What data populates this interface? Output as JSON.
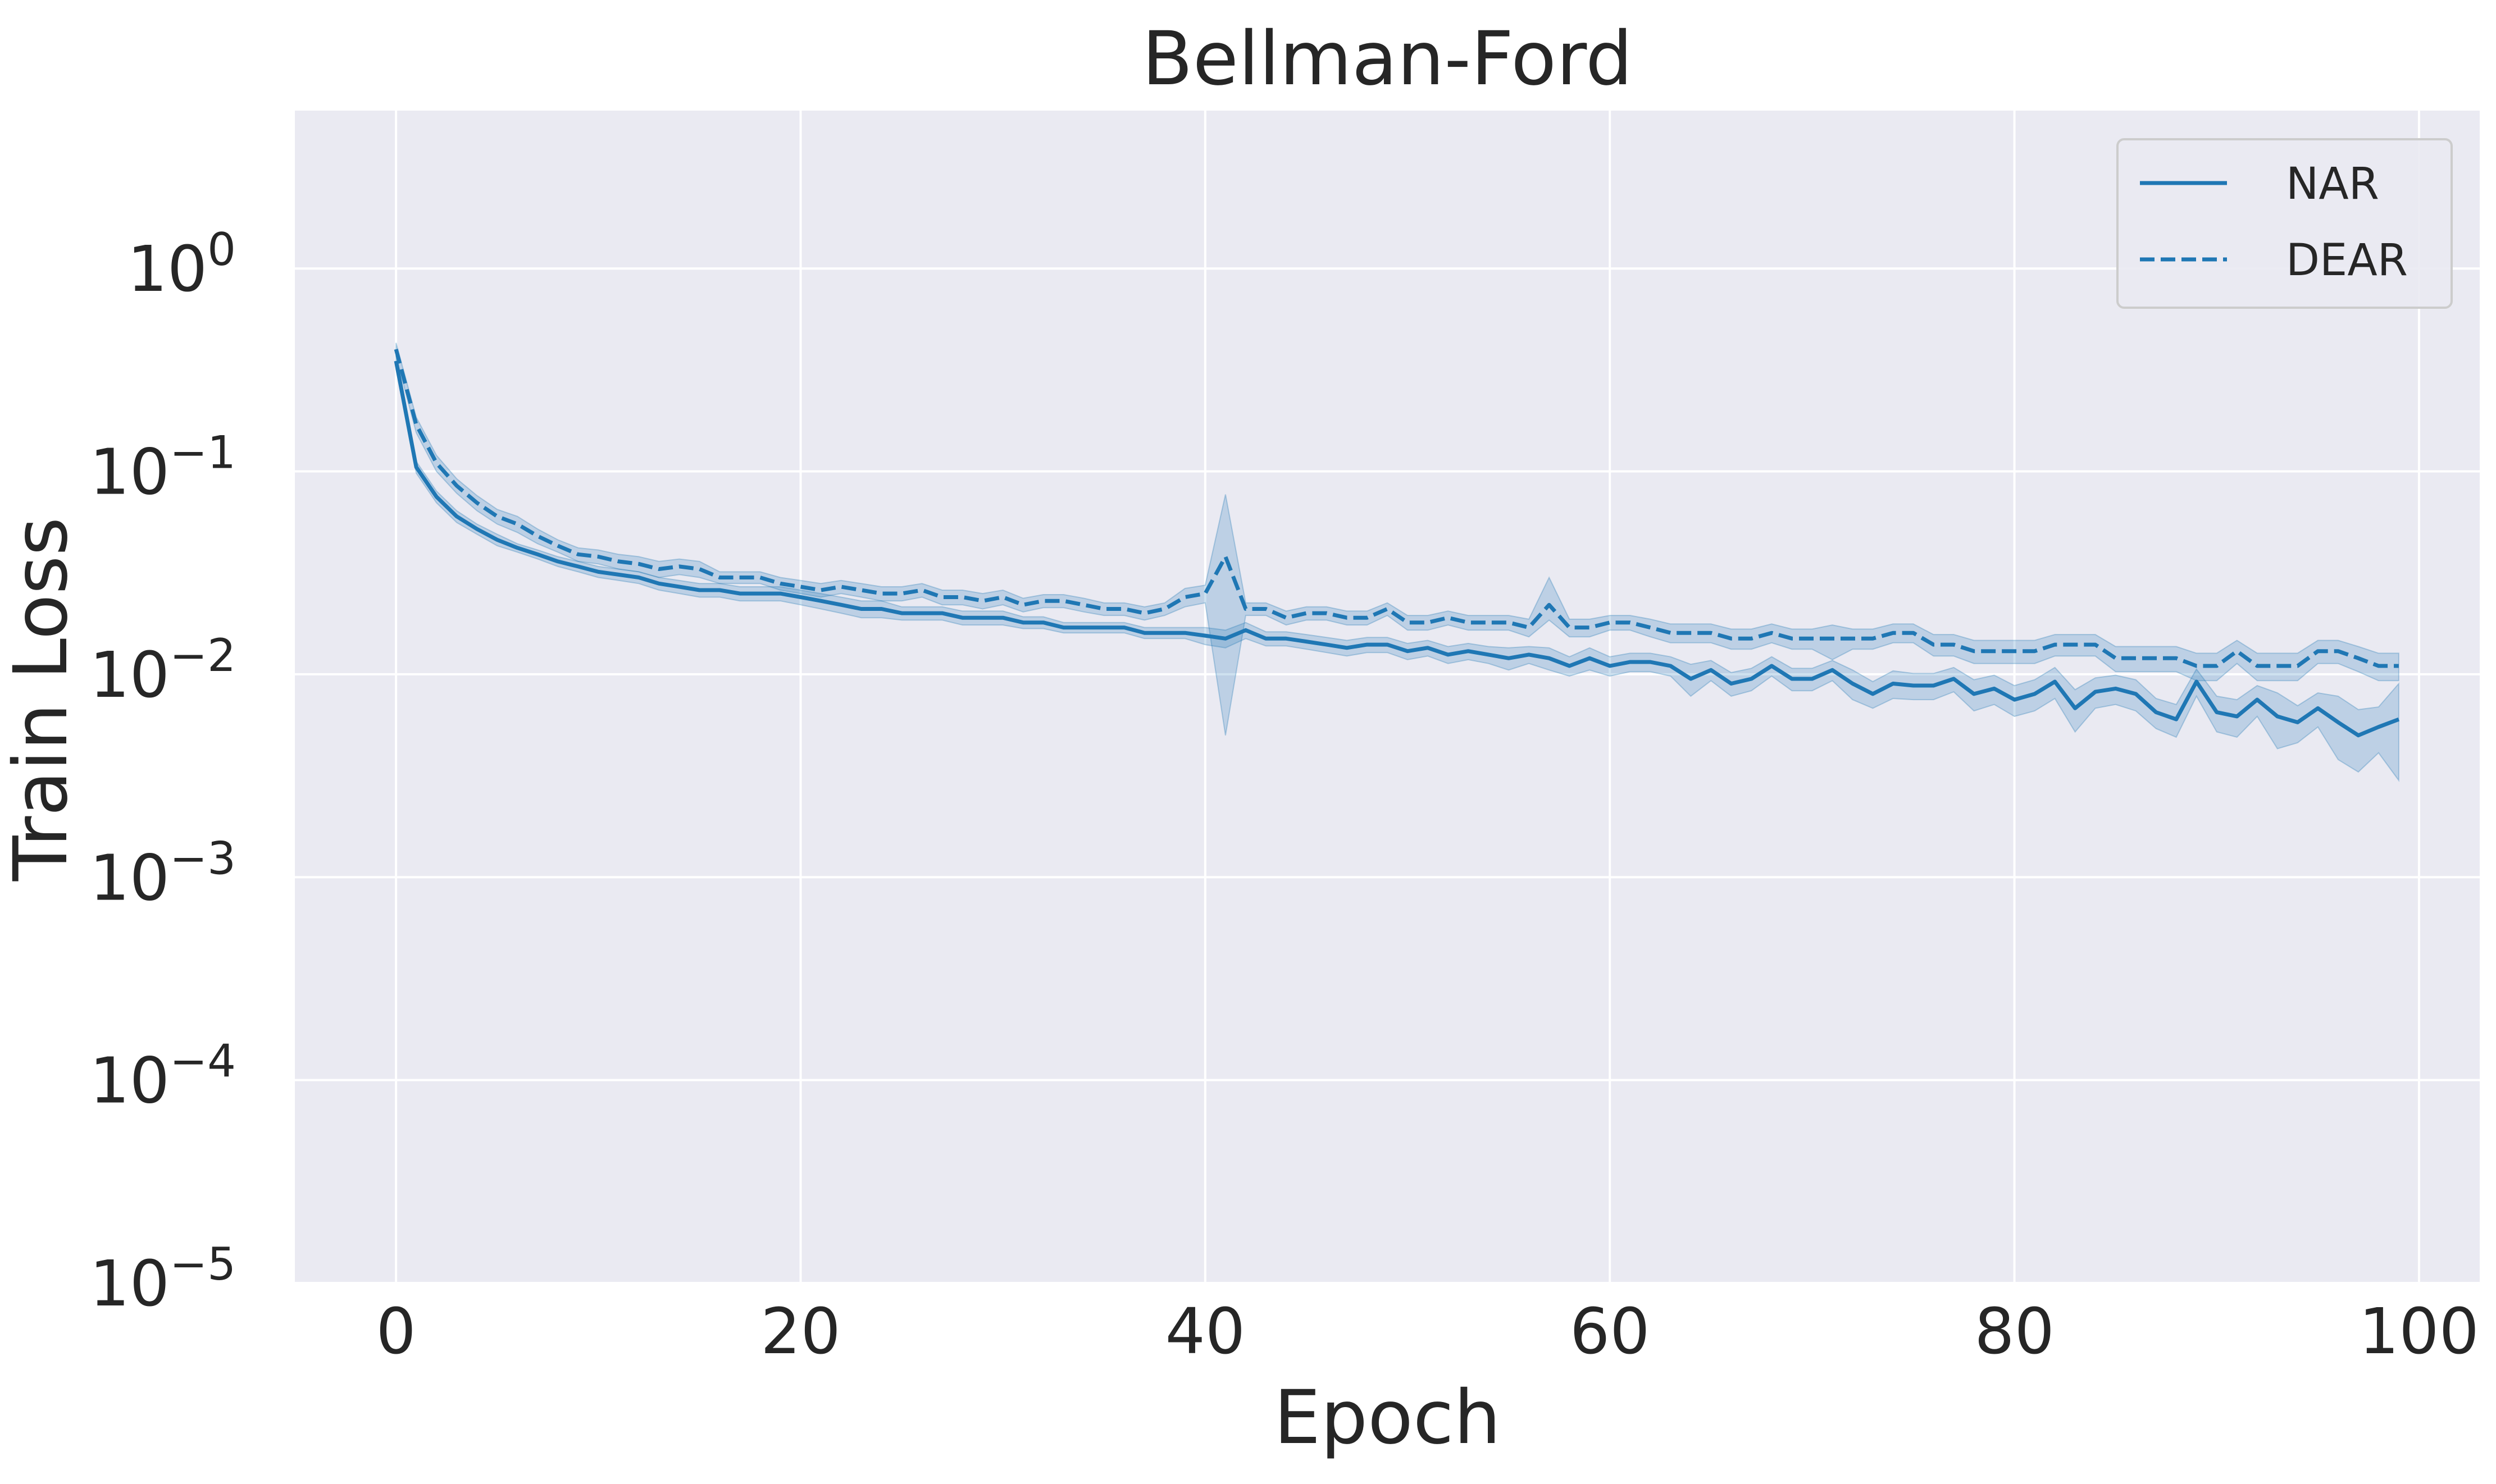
{
  "chart_data": {
    "type": "line",
    "title": "Bellman-Ford",
    "xlabel": "Epoch",
    "ylabel": "Train Loss",
    "xlim": [
      -5,
      103
    ],
    "ylim": [
      1e-05,
      6
    ],
    "yscale": "log",
    "grid": true,
    "background": "#eaeaf2",
    "legend_position": "top-right",
    "x_ticks": [
      {
        "value": 0,
        "label": "0"
      },
      {
        "value": 20,
        "label": "20"
      },
      {
        "value": 40,
        "label": "40"
      },
      {
        "value": 60,
        "label": "60"
      },
      {
        "value": 80,
        "label": "80"
      },
      {
        "value": 100,
        "label": "100"
      }
    ],
    "y_ticks": [
      {
        "value": 1,
        "base": "10",
        "exp": "0"
      },
      {
        "value": 0.1,
        "base": "10",
        "exp": "−1"
      },
      {
        "value": 0.01,
        "base": "10",
        "exp": "−2"
      },
      {
        "value": 0.001,
        "base": "10",
        "exp": "−3"
      },
      {
        "value": 0.0001,
        "base": "10",
        "exp": "−4"
      },
      {
        "value": 1e-05,
        "base": "10",
        "exp": "−5"
      }
    ],
    "series": [
      {
        "name": "NAR",
        "color": "#1f77b4",
        "dash": "solid",
        "x": [
          0,
          1,
          2,
          3,
          4,
          5,
          6,
          7,
          8,
          9,
          10,
          11,
          12,
          13,
          14,
          15,
          16,
          17,
          18,
          19,
          20,
          21,
          22,
          23,
          24,
          25,
          26,
          27,
          28,
          29,
          30,
          31,
          32,
          33,
          34,
          35,
          36,
          37,
          38,
          39,
          40,
          41,
          42,
          43,
          44,
          45,
          46,
          47,
          48,
          49,
          50,
          51,
          52,
          53,
          54,
          55,
          56,
          57,
          58,
          59,
          60,
          61,
          62,
          63,
          64,
          65,
          66,
          67,
          68,
          69,
          70,
          71,
          72,
          73,
          74,
          75,
          76,
          77,
          78,
          79,
          80,
          81,
          82,
          83,
          84,
          85,
          86,
          87,
          88,
          89,
          90,
          91,
          92,
          93,
          94,
          95,
          96,
          97,
          98,
          99
        ],
        "y": [
          0.35,
          0.105,
          0.075,
          0.06,
          0.052,
          0.046,
          0.042,
          0.039,
          0.036,
          0.034,
          0.032,
          0.031,
          0.03,
          0.028,
          0.027,
          0.026,
          0.026,
          0.025,
          0.025,
          0.025,
          0.024,
          0.023,
          0.022,
          0.021,
          0.021,
          0.02,
          0.02,
          0.02,
          0.019,
          0.019,
          0.019,
          0.018,
          0.018,
          0.017,
          0.017,
          0.017,
          0.017,
          0.016,
          0.016,
          0.016,
          0.0155,
          0.015,
          0.0165,
          0.015,
          0.015,
          0.0145,
          0.014,
          0.0135,
          0.014,
          0.014,
          0.013,
          0.0135,
          0.0125,
          0.013,
          0.0125,
          0.012,
          0.0125,
          0.012,
          0.011,
          0.012,
          0.011,
          0.0115,
          0.0115,
          0.011,
          0.0095,
          0.0105,
          0.009,
          0.0095,
          0.011,
          0.0095,
          0.0095,
          0.0105,
          0.009,
          0.008,
          0.009,
          0.0088,
          0.0088,
          0.0095,
          0.008,
          0.0085,
          0.0075,
          0.008,
          0.0092,
          0.0068,
          0.0082,
          0.0085,
          0.008,
          0.0065,
          0.006,
          0.0092,
          0.0065,
          0.0062,
          0.0075,
          0.0062,
          0.0058,
          0.0068,
          0.0058,
          0.005,
          0.0055,
          0.006
        ],
        "band_lower": [
          0.32,
          0.098,
          0.07,
          0.056,
          0.049,
          0.043,
          0.04,
          0.037,
          0.034,
          0.032,
          0.03,
          0.029,
          0.028,
          0.026,
          0.025,
          0.024,
          0.024,
          0.023,
          0.023,
          0.023,
          0.022,
          0.021,
          0.02,
          0.019,
          0.019,
          0.0185,
          0.0185,
          0.0185,
          0.0175,
          0.0175,
          0.0175,
          0.0168,
          0.0168,
          0.016,
          0.016,
          0.016,
          0.016,
          0.015,
          0.015,
          0.015,
          0.014,
          0.0135,
          0.015,
          0.0138,
          0.0138,
          0.0133,
          0.0128,
          0.0123,
          0.0128,
          0.0128,
          0.0118,
          0.0123,
          0.0113,
          0.0118,
          0.0113,
          0.0105,
          0.0113,
          0.0105,
          0.0098,
          0.0105,
          0.0098,
          0.0103,
          0.0103,
          0.0098,
          0.0078,
          0.0093,
          0.0078,
          0.0083,
          0.0098,
          0.0083,
          0.0083,
          0.0093,
          0.0075,
          0.0068,
          0.0076,
          0.0075,
          0.0075,
          0.0082,
          0.0066,
          0.0071,
          0.0062,
          0.0066,
          0.0076,
          0.0052,
          0.0068,
          0.0071,
          0.0066,
          0.0054,
          0.0049,
          0.0078,
          0.0052,
          0.0049,
          0.0062,
          0.0043,
          0.0046,
          0.0055,
          0.0038,
          0.0033,
          0.0041,
          0.003
        ],
        "band_upper": [
          0.38,
          0.112,
          0.08,
          0.064,
          0.055,
          0.049,
          0.044,
          0.041,
          0.038,
          0.036,
          0.034,
          0.033,
          0.032,
          0.03,
          0.029,
          0.028,
          0.028,
          0.027,
          0.027,
          0.027,
          0.026,
          0.025,
          0.024,
          0.023,
          0.023,
          0.0215,
          0.0215,
          0.0215,
          0.0205,
          0.0205,
          0.0205,
          0.0192,
          0.0192,
          0.018,
          0.018,
          0.018,
          0.018,
          0.017,
          0.017,
          0.017,
          0.017,
          0.0165,
          0.018,
          0.0162,
          0.0162,
          0.0157,
          0.0152,
          0.0147,
          0.0152,
          0.0152,
          0.0142,
          0.0147,
          0.0137,
          0.0142,
          0.0137,
          0.0135,
          0.0137,
          0.0135,
          0.0122,
          0.0135,
          0.0122,
          0.0127,
          0.0127,
          0.0122,
          0.0112,
          0.0117,
          0.0102,
          0.0107,
          0.0122,
          0.0107,
          0.0107,
          0.0117,
          0.0105,
          0.0092,
          0.0104,
          0.0101,
          0.0101,
          0.0108,
          0.0094,
          0.0099,
          0.0088,
          0.0094,
          0.0108,
          0.0084,
          0.0096,
          0.0099,
          0.0094,
          0.0076,
          0.0071,
          0.0106,
          0.0078,
          0.0075,
          0.0088,
          0.0081,
          0.007,
          0.0081,
          0.0078,
          0.0067,
          0.0069,
          0.009
        ]
      },
      {
        "name": "DEAR",
        "color": "#1f77b4",
        "dash": "dashed",
        "x": [
          0,
          1,
          2,
          3,
          4,
          5,
          6,
          7,
          8,
          9,
          10,
          11,
          12,
          13,
          14,
          15,
          16,
          17,
          18,
          19,
          20,
          21,
          22,
          23,
          24,
          25,
          26,
          27,
          28,
          29,
          30,
          31,
          32,
          33,
          34,
          35,
          36,
          37,
          38,
          39,
          40,
          41,
          42,
          43,
          44,
          45,
          46,
          47,
          48,
          49,
          50,
          51,
          52,
          53,
          54,
          55,
          56,
          57,
          58,
          59,
          60,
          61,
          62,
          63,
          64,
          65,
          66,
          67,
          68,
          69,
          70,
          71,
          72,
          73,
          74,
          75,
          76,
          77,
          78,
          79,
          80,
          81,
          82,
          83,
          84,
          85,
          86,
          87,
          88,
          89,
          90,
          91,
          92,
          93,
          94,
          95,
          96,
          97,
          98,
          99
        ],
        "y": [
          0.4,
          0.17,
          0.11,
          0.085,
          0.07,
          0.06,
          0.055,
          0.048,
          0.043,
          0.039,
          0.038,
          0.036,
          0.035,
          0.033,
          0.034,
          0.033,
          0.03,
          0.03,
          0.03,
          0.028,
          0.027,
          0.026,
          0.027,
          0.026,
          0.025,
          0.025,
          0.026,
          0.024,
          0.024,
          0.023,
          0.024,
          0.022,
          0.023,
          0.023,
          0.022,
          0.021,
          0.021,
          0.02,
          0.021,
          0.024,
          0.025,
          0.038,
          0.021,
          0.021,
          0.019,
          0.02,
          0.02,
          0.019,
          0.019,
          0.021,
          0.018,
          0.018,
          0.019,
          0.018,
          0.018,
          0.018,
          0.017,
          0.022,
          0.017,
          0.017,
          0.018,
          0.018,
          0.017,
          0.016,
          0.016,
          0.016,
          0.015,
          0.015,
          0.016,
          0.015,
          0.015,
          0.015,
          0.015,
          0.015,
          0.016,
          0.016,
          0.014,
          0.014,
          0.013,
          0.013,
          0.013,
          0.013,
          0.014,
          0.014,
          0.014,
          0.012,
          0.012,
          0.012,
          0.012,
          0.011,
          0.011,
          0.013,
          0.011,
          0.011,
          0.011,
          0.013,
          0.013,
          0.012,
          0.011,
          0.011
        ],
        "band_lower": [
          0.37,
          0.155,
          0.1,
          0.078,
          0.064,
          0.055,
          0.05,
          0.044,
          0.04,
          0.036,
          0.035,
          0.033,
          0.032,
          0.03,
          0.031,
          0.03,
          0.028,
          0.028,
          0.028,
          0.026,
          0.025,
          0.024,
          0.025,
          0.024,
          0.023,
          0.023,
          0.024,
          0.022,
          0.022,
          0.021,
          0.022,
          0.0203,
          0.0213,
          0.0213,
          0.0203,
          0.0195,
          0.0195,
          0.0185,
          0.0195,
          0.0215,
          0.0225,
          0.005,
          0.0195,
          0.0195,
          0.0175,
          0.0185,
          0.0185,
          0.0175,
          0.0175,
          0.0195,
          0.0165,
          0.0165,
          0.0175,
          0.0165,
          0.0165,
          0.0165,
          0.0153,
          0.0185,
          0.0153,
          0.0153,
          0.0165,
          0.0165,
          0.0153,
          0.0143,
          0.0143,
          0.0143,
          0.0133,
          0.0133,
          0.0143,
          0.0133,
          0.0133,
          0.0118,
          0.0133,
          0.0133,
          0.0143,
          0.0143,
          0.0123,
          0.0123,
          0.0113,
          0.0113,
          0.0113,
          0.0113,
          0.0123,
          0.0123,
          0.0123,
          0.0103,
          0.0103,
          0.0103,
          0.0103,
          0.0093,
          0.0093,
          0.0113,
          0.0093,
          0.0093,
          0.0093,
          0.0113,
          0.0113,
          0.0103,
          0.0093,
          0.0093
        ],
        "band_upper": [
          0.43,
          0.185,
          0.12,
          0.092,
          0.076,
          0.065,
          0.06,
          0.052,
          0.046,
          0.042,
          0.041,
          0.039,
          0.038,
          0.036,
          0.037,
          0.036,
          0.032,
          0.032,
          0.032,
          0.03,
          0.029,
          0.028,
          0.029,
          0.028,
          0.027,
          0.027,
          0.028,
          0.026,
          0.026,
          0.025,
          0.026,
          0.0237,
          0.0247,
          0.0247,
          0.0237,
          0.0225,
          0.0225,
          0.0215,
          0.0225,
          0.0265,
          0.0275,
          0.077,
          0.0225,
          0.0225,
          0.0205,
          0.0215,
          0.0215,
          0.0205,
          0.0205,
          0.0225,
          0.0195,
          0.0195,
          0.0205,
          0.0195,
          0.0195,
          0.0195,
          0.0187,
          0.03,
          0.0187,
          0.0187,
          0.0195,
          0.0195,
          0.0187,
          0.0177,
          0.0177,
          0.0177,
          0.0167,
          0.0167,
          0.0177,
          0.0167,
          0.0167,
          0.0175,
          0.0167,
          0.0167,
          0.0177,
          0.0177,
          0.0157,
          0.0157,
          0.0147,
          0.0147,
          0.0147,
          0.0147,
          0.0157,
          0.0157,
          0.0157,
          0.0137,
          0.0137,
          0.0137,
          0.0137,
          0.0127,
          0.0127,
          0.0147,
          0.0127,
          0.0127,
          0.0127,
          0.0147,
          0.0147,
          0.0137,
          0.0127,
          0.0127
        ]
      }
    ]
  }
}
